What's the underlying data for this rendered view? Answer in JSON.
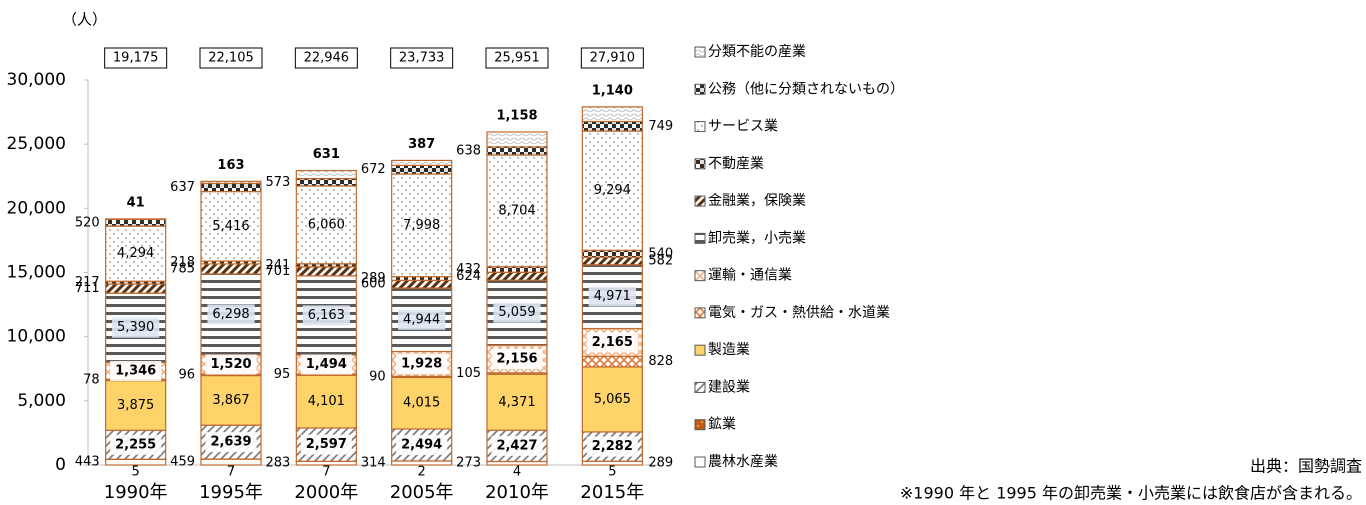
{
  "chart_data": {
    "type": "stacked_bar",
    "unit_label": "（人）",
    "categories": [
      "1990年",
      "1995年",
      "2000年",
      "2005年",
      "2010年",
      "2015年"
    ],
    "series": [
      {
        "name": "農林水産業",
        "color": "#ffffff",
        "values": [
          443,
          459,
          283,
          314,
          273,
          289
        ]
      },
      {
        "name": "鉱業",
        "color": "#c55a11",
        "values": [
          5,
          7,
          7,
          2,
          4,
          5
        ]
      },
      {
        "name": "建設業",
        "color": "#7f7f7f",
        "values": [
          2255,
          2639,
          2597,
          2494,
          2427,
          2282
        ],
        "value_labels": [
          "2,255",
          "2,639",
          "2,597",
          "2,494",
          "2,427",
          "2,282"
        ]
      },
      {
        "name": "製造業",
        "color": "#fdd36a",
        "values": [
          3875,
          3867,
          4101,
          4015,
          4371,
          5065
        ],
        "value_labels": [
          "3,875",
          "3,867",
          "4,101",
          "4,015",
          "4,371",
          "5,065"
        ]
      },
      {
        "name": "電気・ガス・熱供給・水道業",
        "color": "#e07b39",
        "values": [
          78,
          96,
          95,
          90,
          105,
          828
        ]
      },
      {
        "name": "運輸・通信業",
        "color": "#f4b183",
        "values": [
          1346,
          1520,
          1494,
          1928,
          2156,
          2165
        ],
        "value_labels": [
          "1,346",
          "1,520",
          "1,494",
          "1,928",
          "2,156",
          "2,165"
        ]
      },
      {
        "name": "卸売業，小売業",
        "color": "#595959",
        "values": [
          5390,
          6298,
          6163,
          4944,
          5059,
          4971
        ],
        "value_labels": [
          "5,390",
          "6,298",
          "6,163",
          "4,944",
          "5,059",
          "4,971"
        ]
      },
      {
        "name": "金融業，保険業",
        "color": "#5a3210",
        "values": [
          711,
          785,
          701,
          600,
          624,
          582
        ]
      },
      {
        "name": "不動産業",
        "color": "#3b2a1a",
        "values": [
          217,
          218,
          241,
          289,
          432,
          540
        ]
      },
      {
        "name": "サービス業",
        "color": "#8c8c8c",
        "values": [
          4294,
          5416,
          6060,
          7998,
          8704,
          9294
        ],
        "value_labels": [
          "4,294",
          "5,416",
          "6,060",
          "7,998",
          "8,704",
          "9,294"
        ]
      },
      {
        "name": "公務（他に分類されないもの）",
        "color": "#2b2b2b",
        "values": [
          520,
          637,
          573,
          672,
          638,
          749
        ]
      },
      {
        "name": "分類不能の産業",
        "color": "#bfbfbf",
        "values": [
          41,
          163,
          631,
          387,
          1158,
          1140
        ],
        "value_labels": [
          "41",
          "163",
          "631",
          "387",
          "1,158",
          "1,140"
        ]
      }
    ],
    "totals": {
      "values": [
        19175,
        22105,
        22946,
        23733,
        25951,
        27910
      ],
      "value_labels": [
        "19,175",
        "22,105",
        "22,946",
        "23,733",
        "25,951",
        "27,910"
      ]
    },
    "ylim": [
      0,
      30000
    ],
    "yticks": [
      0,
      {
        "value": 5000,
        "label": "5,000"
      },
      {
        "value": 10000,
        "label": "10,000"
      },
      {
        "value": 15000,
        "label": "15,000"
      },
      {
        "value": 20000,
        "label": "20,000"
      },
      {
        "value": 25000,
        "label": "25,000"
      },
      {
        "value": 30000,
        "label": "30,000"
      }
    ],
    "grid": false,
    "legend": "right",
    "source": "出典：国勢調査",
    "note": "※1990 年と 1995 年の卸売業・小売業には飲食店が含まれる。"
  }
}
